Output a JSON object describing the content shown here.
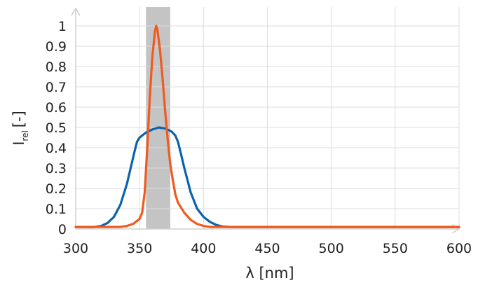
{
  "chart_data": {
    "type": "line",
    "xlabel": "λ [nm]",
    "ylabel": {
      "symbol": "I",
      "subscript": "rel",
      "unit": "[-]"
    },
    "xlim": [
      300,
      600
    ],
    "ylim": [
      0,
      1
    ],
    "xticks": [
      300,
      350,
      400,
      450,
      500,
      550,
      600
    ],
    "yticks": [
      0,
      0.1,
      0.2,
      0.3,
      0.4,
      0.5,
      0.6,
      0.7,
      0.8,
      0.9,
      1
    ],
    "grid": true,
    "shaded_band": {
      "x": [
        355,
        374
      ],
      "color": "#c4c4c4"
    },
    "series": [
      {
        "color": "#0a63ad",
        "x": [
          300,
          315,
          320,
          325,
          330,
          335,
          340,
          343,
          346,
          348,
          350,
          355,
          360,
          365,
          370,
          375,
          378,
          380,
          382,
          385,
          390,
          395,
          400,
          405,
          410,
          415,
          420,
          425,
          430,
          600
        ],
        "y": [
          0.01,
          0.01,
          0.015,
          0.03,
          0.06,
          0.12,
          0.22,
          0.3,
          0.38,
          0.43,
          0.45,
          0.475,
          0.49,
          0.5,
          0.495,
          0.48,
          0.46,
          0.43,
          0.38,
          0.3,
          0.18,
          0.1,
          0.06,
          0.035,
          0.02,
          0.012,
          0.01,
          0.01,
          0.01,
          0.01
        ]
      },
      {
        "color": "#f05a1e",
        "x": [
          300,
          335,
          340,
          345,
          350,
          352,
          354,
          356,
          358,
          360,
          362,
          363,
          364,
          366,
          368,
          370,
          372,
          374,
          376,
          378,
          380,
          385,
          390,
          395,
          400,
          405,
          410,
          600
        ],
        "y": [
          0.01,
          0.01,
          0.015,
          0.025,
          0.05,
          0.08,
          0.18,
          0.4,
          0.65,
          0.85,
          0.97,
          1,
          0.98,
          0.88,
          0.74,
          0.58,
          0.44,
          0.32,
          0.24,
          0.17,
          0.13,
          0.08,
          0.045,
          0.025,
          0.015,
          0.01,
          0.01,
          0.01
        ]
      }
    ]
  }
}
